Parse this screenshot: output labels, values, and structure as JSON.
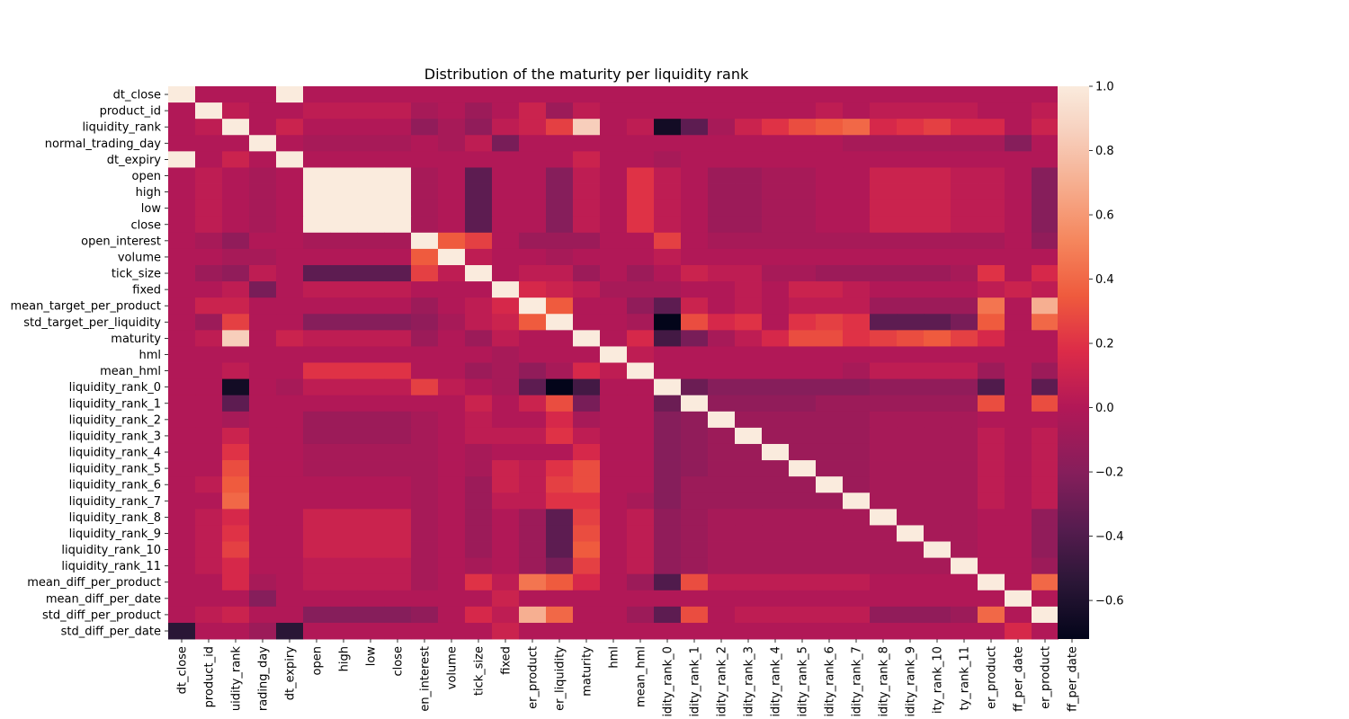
{
  "chart_data": {
    "type": "heatmap",
    "title": "Distribution of the maturity per liquidity rank",
    "rows": [
      "dt_close",
      "product_id",
      "liquidity_rank",
      "normal_trading_day",
      "dt_expiry",
      "open",
      "high",
      "low",
      "close",
      "open_interest",
      "volume",
      "tick_size",
      "fixed",
      "mean_target_per_product",
      "std_target_per_liquidity",
      "maturity",
      "hml",
      "mean_hml",
      "liquidity_rank_0",
      "liquidity_rank_1",
      "liquidity_rank_2",
      "liquidity_rank_3",
      "liquidity_rank_4",
      "liquidity_rank_5",
      "liquidity_rank_6",
      "liquidity_rank_7",
      "liquidity_rank_8",
      "liquidity_rank_9",
      "liquidity_rank_10",
      "liquidity_rank_11",
      "mean_diff_per_product",
      "mean_diff_per_date",
      "std_diff_per_product",
      "std_diff_per_date"
    ],
    "columns": [
      "dt_close",
      "product_id",
      "liquidity_rank",
      "normal_trading_day",
      "dt_expiry",
      "open",
      "high",
      "low",
      "close",
      "open_interest",
      "volume",
      "tick_size",
      "fixed",
      "mean_target_per_product",
      "std_target_per_liquidity",
      "maturity",
      "hml",
      "mean_hml",
      "liquidity_rank_0",
      "liquidity_rank_1",
      "liquidity_rank_2",
      "liquidity_rank_3",
      "liquidity_rank_4",
      "liquidity_rank_5",
      "liquidity_rank_6",
      "liquidity_rank_7",
      "liquidity_rank_8",
      "liquidity_rank_9",
      "liquidity_rank_10",
      "liquidity_rank_11",
      "mean_diff_per_product",
      "mean_diff_per_date",
      "std_diff_per_product",
      "std_diff_per_date"
    ],
    "x_tick_labels_visible": [
      "dt_close",
      "product_id",
      "uidity_rank",
      "rading_day",
      "dt_expiry",
      "open",
      "high",
      "low",
      "close",
      "en_interest",
      "volume",
      "tick_size",
      "fixed",
      "er_product",
      "er_liquidity",
      "maturity",
      "hml",
      "mean_hml",
      "idity_rank_0",
      "idity_rank_1",
      "idity_rank_2",
      "idity_rank_3",
      "idity_rank_4",
      "idity_rank_5",
      "idity_rank_6",
      "idity_rank_7",
      "idity_rank_8",
      "idity_rank_9",
      "ity_rank_10",
      "ty_rank_11",
      "er_product",
      "ff_per_date",
      "er_product",
      "ff_per_date"
    ],
    "y_tick_labels_visible": [
      "dt_close",
      "product_id",
      "liquidity_rank",
      "normal_trading_day",
      "dt_expiry",
      "open",
      "high",
      "low",
      "close",
      "open_interest",
      "volume",
      "tick_size",
      "fixed",
      "mean_target_per_product",
      "std_target_per_liquidity",
      "maturity",
      "hml",
      "mean_hml",
      "liquidity_rank_0",
      "liquidity_rank_1",
      "liquidity_rank_2",
      "liquidity_rank_3",
      "liquidity_rank_4",
      "liquidity_rank_5",
      "liquidity_rank_6",
      "liquidity_rank_7",
      "liquidity_rank_8",
      "liquidity_rank_9",
      "liquidity_rank_10",
      "liquidity_rank_11",
      "mean_diff_per_product",
      "mean_diff_per_date",
      "std_diff_per_product",
      "std_diff_per_date"
    ],
    "colorbar": {
      "vmin": -0.72,
      "vmax": 1.0,
      "ticks": [
        1.0,
        0.8,
        0.6,
        0.4,
        0.2,
        0.0,
        -0.2,
        -0.4,
        -0.6
      ],
      "tick_labels": [
        "1.0",
        "0.8",
        "0.6",
        "0.4",
        "0.2",
        "0.0",
        "−0.2",
        "−0.4",
        "−0.6"
      ]
    },
    "colormap": "rocket",
    "values": [
      [
        1.0,
        0.0,
        0.0,
        0.0,
        1.0,
        0.0,
        0.0,
        0.0,
        0.0,
        0.0,
        0.0,
        0.0,
        0.0,
        0.0,
        0.0,
        0.0,
        0.0,
        0.0,
        0.0,
        0.0,
        0.0,
        0.0,
        0.0,
        0.0,
        0.0,
        0.0,
        0.0,
        0.0,
        0.0,
        0.0,
        0.0,
        0.0,
        0.0,
        -0.55
      ],
      [
        0.0,
        1.0,
        0.05,
        0.0,
        0.0,
        0.05,
        0.05,
        0.05,
        0.05,
        -0.05,
        0.0,
        -0.1,
        0.0,
        0.1,
        -0.1,
        0.05,
        0.0,
        0.0,
        0.0,
        0.0,
        0.0,
        0.0,
        0.0,
        0.0,
        0.05,
        0.0,
        0.05,
        0.05,
        0.05,
        0.05,
        0.0,
        0.0,
        0.05,
        0.0
      ],
      [
        0.0,
        0.05,
        1.0,
        0.0,
        0.1,
        0.0,
        0.0,
        0.0,
        0.0,
        -0.15,
        -0.05,
        -0.15,
        0.05,
        0.1,
        0.25,
        0.85,
        0.0,
        0.05,
        -0.65,
        -0.35,
        -0.05,
        0.1,
        0.2,
        0.3,
        0.35,
        0.4,
        0.15,
        0.2,
        0.25,
        0.15,
        0.15,
        0.0,
        0.1,
        0.0
      ],
      [
        0.0,
        0.0,
        0.0,
        1.0,
        0.0,
        -0.05,
        -0.05,
        -0.05,
        -0.05,
        0.0,
        -0.05,
        0.05,
        -0.25,
        0.0,
        0.0,
        0.0,
        0.0,
        0.0,
        0.0,
        0.0,
        0.0,
        0.0,
        0.0,
        0.0,
        0.0,
        -0.05,
        -0.05,
        -0.05,
        -0.05,
        -0.05,
        -0.05,
        -0.2,
        0.0,
        -0.1
      ],
      [
        1.0,
        0.0,
        0.1,
        0.0,
        1.0,
        0.0,
        0.0,
        0.0,
        0.0,
        0.0,
        0.0,
        0.0,
        0.0,
        0.0,
        0.0,
        0.1,
        0.0,
        0.0,
        -0.05,
        0.0,
        0.0,
        0.0,
        0.0,
        0.0,
        0.0,
        0.0,
        0.0,
        0.0,
        0.0,
        0.0,
        0.0,
        0.0,
        0.0,
        -0.55
      ],
      [
        0.0,
        0.05,
        0.0,
        -0.05,
        0.0,
        1.0,
        1.0,
        1.0,
        1.0,
        -0.05,
        0.0,
        -0.35,
        0.0,
        0.0,
        -0.2,
        0.05,
        0.0,
        0.2,
        0.05,
        0.0,
        -0.1,
        -0.1,
        -0.05,
        -0.05,
        0.0,
        0.0,
        0.1,
        0.1,
        0.1,
        0.05,
        0.05,
        0.0,
        -0.2,
        0.0
      ],
      [
        0.0,
        0.05,
        0.0,
        -0.05,
        0.0,
        1.0,
        1.0,
        1.0,
        1.0,
        -0.05,
        0.0,
        -0.35,
        0.0,
        0.0,
        -0.2,
        0.05,
        0.0,
        0.2,
        0.05,
        0.0,
        -0.1,
        -0.1,
        -0.05,
        -0.05,
        0.0,
        0.0,
        0.1,
        0.1,
        0.1,
        0.05,
        0.05,
        0.0,
        -0.2,
        0.0
      ],
      [
        0.0,
        0.05,
        0.0,
        -0.05,
        0.0,
        1.0,
        1.0,
        1.0,
        1.0,
        -0.05,
        0.0,
        -0.35,
        0.0,
        0.0,
        -0.2,
        0.05,
        0.0,
        0.2,
        0.05,
        0.0,
        -0.1,
        -0.1,
        -0.05,
        -0.05,
        0.0,
        0.0,
        0.1,
        0.1,
        0.1,
        0.05,
        0.05,
        0.0,
        -0.2,
        0.0
      ],
      [
        0.0,
        0.05,
        0.0,
        -0.05,
        0.0,
        1.0,
        1.0,
        1.0,
        1.0,
        -0.05,
        0.0,
        -0.35,
        0.0,
        0.0,
        -0.2,
        0.05,
        0.0,
        0.2,
        0.05,
        0.0,
        -0.1,
        -0.1,
        -0.05,
        -0.05,
        0.0,
        0.0,
        0.1,
        0.1,
        0.1,
        0.05,
        0.05,
        0.0,
        -0.2,
        0.0
      ],
      [
        0.0,
        -0.05,
        -0.15,
        0.0,
        0.0,
        -0.05,
        -0.05,
        -0.05,
        -0.05,
        1.0,
        0.35,
        0.25,
        0.0,
        -0.1,
        -0.1,
        -0.1,
        0.0,
        0.0,
        0.25,
        0.0,
        -0.05,
        -0.05,
        -0.05,
        -0.05,
        -0.05,
        -0.05,
        -0.05,
        -0.05,
        -0.05,
        -0.05,
        -0.05,
        0.0,
        -0.15,
        0.0
      ],
      [
        0.0,
        0.0,
        -0.05,
        -0.05,
        0.0,
        0.0,
        0.0,
        0.0,
        0.0,
        0.35,
        1.0,
        0.05,
        0.0,
        0.0,
        -0.05,
        0.0,
        0.0,
        0.0,
        0.05,
        0.0,
        0.0,
        0.0,
        0.0,
        0.0,
        0.0,
        0.0,
        0.0,
        0.0,
        0.0,
        0.0,
        0.0,
        0.0,
        0.0,
        0.0
      ],
      [
        0.0,
        -0.1,
        -0.15,
        0.05,
        0.0,
        -0.35,
        -0.35,
        -0.35,
        -0.35,
        0.25,
        0.05,
        1.0,
        0.0,
        0.05,
        0.05,
        -0.1,
        0.0,
        -0.1,
        0.0,
        0.1,
        0.05,
        0.05,
        -0.05,
        -0.05,
        -0.1,
        -0.1,
        -0.1,
        -0.1,
        -0.1,
        -0.05,
        0.2,
        0.0,
        0.15,
        0.0
      ],
      [
        0.0,
        0.0,
        0.05,
        -0.25,
        0.0,
        0.05,
        0.05,
        0.05,
        0.05,
        0.0,
        0.0,
        0.0,
        1.0,
        0.15,
        0.1,
        0.05,
        -0.05,
        -0.05,
        -0.05,
        0.0,
        0.0,
        0.05,
        0.0,
        0.1,
        0.1,
        0.05,
        0.0,
        0.0,
        0.0,
        0.0,
        0.05,
        0.1,
        0.05,
        0.1
      ],
      [
        0.0,
        0.1,
        0.1,
        0.0,
        0.0,
        0.0,
        0.0,
        0.0,
        0.0,
        -0.1,
        0.0,
        0.05,
        0.15,
        1.0,
        0.35,
        0.0,
        0.0,
        -0.15,
        -0.35,
        0.1,
        0.0,
        0.05,
        0.0,
        0.05,
        0.05,
        0.05,
        -0.1,
        -0.1,
        -0.1,
        -0.1,
        0.45,
        0.0,
        0.7,
        0.0
      ],
      [
        0.0,
        -0.1,
        0.25,
        0.0,
        0.0,
        -0.2,
        -0.2,
        -0.2,
        -0.2,
        -0.15,
        -0.05,
        0.05,
        0.1,
        0.35,
        1.0,
        0.0,
        0.0,
        -0.05,
        -0.72,
        0.3,
        0.15,
        0.2,
        0.0,
        0.2,
        0.25,
        0.2,
        -0.35,
        -0.35,
        -0.35,
        -0.25,
        0.35,
        0.0,
        0.4,
        0.0
      ],
      [
        0.0,
        0.05,
        0.85,
        0.0,
        0.1,
        0.05,
        0.05,
        0.05,
        0.05,
        -0.1,
        0.0,
        -0.1,
        0.05,
        0.0,
        0.0,
        1.0,
        0.0,
        0.15,
        -0.45,
        -0.25,
        -0.05,
        0.05,
        0.15,
        0.3,
        0.3,
        0.2,
        0.25,
        0.3,
        0.35,
        0.25,
        0.15,
        0.0,
        0.0,
        0.0
      ],
      [
        0.0,
        0.0,
        0.0,
        0.0,
        0.0,
        0.0,
        0.0,
        0.0,
        0.0,
        0.0,
        0.0,
        0.0,
        -0.05,
        0.0,
        0.0,
        0.0,
        1.0,
        0.05,
        0.0,
        0.0,
        0.0,
        0.0,
        0.0,
        0.0,
        0.0,
        0.0,
        0.0,
        0.0,
        0.0,
        0.0,
        0.0,
        0.0,
        0.0,
        0.0
      ],
      [
        0.0,
        0.0,
        0.05,
        0.0,
        0.0,
        0.2,
        0.2,
        0.2,
        0.2,
        0.0,
        0.0,
        -0.1,
        -0.05,
        -0.15,
        -0.05,
        0.15,
        0.05,
        1.0,
        0.0,
        0.0,
        0.0,
        0.0,
        0.0,
        0.0,
        0.0,
        -0.05,
        0.05,
        0.05,
        0.05,
        0.05,
        -0.1,
        0.0,
        -0.1,
        0.0
      ],
      [
        0.0,
        0.0,
        -0.65,
        0.0,
        -0.05,
        0.05,
        0.05,
        0.05,
        0.05,
        0.25,
        0.05,
        0.0,
        -0.05,
        -0.35,
        -0.72,
        -0.45,
        0.0,
        0.0,
        1.0,
        -0.3,
        -0.2,
        -0.2,
        -0.2,
        -0.2,
        -0.2,
        -0.2,
        -0.15,
        -0.15,
        -0.15,
        -0.15,
        -0.4,
        0.0,
        -0.35,
        0.0
      ],
      [
        0.0,
        0.0,
        -0.35,
        0.0,
        0.0,
        0.0,
        0.0,
        0.0,
        0.0,
        0.0,
        0.0,
        0.1,
        0.0,
        0.1,
        0.3,
        -0.25,
        0.0,
        0.0,
        -0.3,
        1.0,
        -0.15,
        -0.15,
        -0.15,
        -0.15,
        -0.1,
        -0.1,
        -0.1,
        -0.1,
        -0.1,
        -0.1,
        0.3,
        0.0,
        0.3,
        0.0
      ],
      [
        0.0,
        0.0,
        -0.05,
        0.0,
        0.0,
        -0.1,
        -0.1,
        -0.1,
        -0.1,
        -0.05,
        0.0,
        0.05,
        0.0,
        0.0,
        0.15,
        -0.05,
        0.0,
        0.0,
        -0.2,
        -0.15,
        1.0,
        -0.1,
        -0.1,
        -0.1,
        -0.1,
        -0.1,
        -0.05,
        -0.05,
        -0.05,
        -0.05,
        0.0,
        0.0,
        0.0,
        0.0
      ],
      [
        0.0,
        0.0,
        0.1,
        0.0,
        0.0,
        -0.1,
        -0.1,
        -0.1,
        -0.1,
        -0.05,
        0.0,
        0.05,
        0.05,
        0.05,
        0.2,
        0.05,
        0.0,
        0.0,
        -0.2,
        -0.15,
        -0.1,
        1.0,
        -0.1,
        -0.1,
        -0.1,
        -0.1,
        -0.05,
        -0.05,
        -0.05,
        -0.05,
        0.05,
        0.0,
        0.05,
        0.0
      ],
      [
        0.0,
        0.0,
        0.2,
        0.0,
        0.0,
        -0.05,
        -0.05,
        -0.05,
        -0.05,
        -0.05,
        0.0,
        -0.05,
        0.0,
        0.0,
        0.0,
        0.15,
        0.0,
        0.0,
        -0.2,
        -0.15,
        -0.1,
        -0.1,
        1.0,
        -0.1,
        -0.1,
        -0.1,
        -0.05,
        -0.05,
        -0.05,
        -0.05,
        0.05,
        0.0,
        0.05,
        0.0
      ],
      [
        0.0,
        0.0,
        0.3,
        0.0,
        0.0,
        -0.05,
        -0.05,
        -0.05,
        -0.05,
        -0.05,
        0.0,
        -0.05,
        0.1,
        0.05,
        0.2,
        0.3,
        0.0,
        0.0,
        -0.2,
        -0.15,
        -0.1,
        -0.1,
        -0.1,
        1.0,
        -0.1,
        -0.1,
        -0.05,
        -0.05,
        -0.05,
        -0.05,
        0.05,
        0.0,
        0.05,
        0.0
      ],
      [
        0.0,
        0.05,
        0.35,
        0.0,
        0.0,
        0.0,
        0.0,
        0.0,
        0.0,
        -0.05,
        0.0,
        -0.1,
        0.1,
        0.05,
        0.25,
        0.3,
        0.0,
        0.0,
        -0.2,
        -0.1,
        -0.1,
        -0.1,
        -0.1,
        -0.1,
        1.0,
        -0.1,
        -0.05,
        -0.05,
        -0.05,
        -0.05,
        0.05,
        0.0,
        0.05,
        0.0
      ],
      [
        0.0,
        0.0,
        0.4,
        0.0,
        0.0,
        0.0,
        0.0,
        0.0,
        0.0,
        -0.05,
        0.0,
        -0.1,
        0.05,
        0.05,
        0.2,
        0.2,
        0.0,
        -0.05,
        -0.2,
        -0.1,
        -0.1,
        -0.1,
        -0.1,
        -0.1,
        -0.1,
        1.0,
        -0.05,
        -0.05,
        -0.05,
        -0.05,
        0.05,
        0.0,
        0.05,
        0.0
      ],
      [
        0.0,
        0.05,
        0.15,
        0.0,
        0.0,
        0.1,
        0.1,
        0.1,
        0.1,
        -0.05,
        0.0,
        -0.1,
        0.0,
        -0.1,
        -0.35,
        0.25,
        0.0,
        0.05,
        -0.15,
        -0.1,
        -0.05,
        -0.05,
        -0.05,
        -0.05,
        -0.05,
        -0.05,
        1.0,
        -0.05,
        -0.05,
        -0.05,
        0.0,
        0.0,
        -0.15,
        0.0
      ],
      [
        0.0,
        0.05,
        0.2,
        0.0,
        0.0,
        0.1,
        0.1,
        0.1,
        0.1,
        -0.05,
        0.0,
        -0.1,
        0.0,
        -0.1,
        -0.35,
        0.3,
        0.0,
        0.05,
        -0.15,
        -0.1,
        -0.05,
        -0.05,
        -0.05,
        -0.05,
        -0.05,
        -0.05,
        -0.05,
        1.0,
        -0.05,
        -0.05,
        0.0,
        0.0,
        -0.15,
        0.0
      ],
      [
        0.0,
        0.05,
        0.25,
        0.0,
        0.0,
        0.1,
        0.1,
        0.1,
        0.1,
        -0.05,
        0.0,
        -0.1,
        0.0,
        -0.1,
        -0.35,
        0.35,
        0.0,
        0.05,
        -0.15,
        -0.1,
        -0.05,
        -0.05,
        -0.05,
        -0.05,
        -0.05,
        -0.05,
        -0.05,
        -0.05,
        1.0,
        -0.05,
        0.0,
        0.0,
        -0.15,
        0.0
      ],
      [
        0.0,
        0.05,
        0.15,
        0.0,
        0.0,
        0.05,
        0.05,
        0.05,
        0.05,
        -0.05,
        0.0,
        -0.05,
        0.0,
        -0.1,
        -0.25,
        0.25,
        0.0,
        0.05,
        -0.15,
        -0.1,
        -0.05,
        -0.05,
        -0.05,
        -0.05,
        -0.05,
        -0.05,
        -0.05,
        -0.05,
        -0.05,
        1.0,
        0.0,
        0.0,
        -0.1,
        0.0
      ],
      [
        0.0,
        0.0,
        0.15,
        -0.05,
        0.0,
        0.05,
        0.05,
        0.05,
        0.05,
        -0.05,
        0.0,
        0.2,
        0.05,
        0.45,
        0.35,
        0.15,
        0.0,
        -0.1,
        -0.4,
        0.3,
        0.05,
        0.05,
        0.05,
        0.05,
        0.05,
        0.05,
        0.0,
        0.0,
        0.0,
        0.0,
        1.0,
        0.0,
        0.4,
        0.0
      ],
      [
        0.0,
        0.0,
        0.0,
        -0.2,
        0.0,
        0.0,
        0.0,
        0.0,
        0.0,
        0.0,
        0.0,
        0.0,
        0.1,
        0.0,
        0.0,
        0.0,
        0.0,
        0.0,
        0.0,
        0.0,
        0.0,
        0.0,
        0.0,
        0.0,
        0.0,
        0.0,
        0.0,
        0.0,
        0.0,
        0.0,
        0.0,
        1.0,
        0.0,
        0.15
      ],
      [
        0.0,
        0.05,
        0.1,
        0.0,
        0.0,
        -0.2,
        -0.2,
        -0.2,
        -0.2,
        -0.15,
        0.0,
        0.15,
        0.05,
        0.7,
        0.4,
        0.0,
        0.0,
        -0.1,
        -0.35,
        0.3,
        0.0,
        0.05,
        0.05,
        0.05,
        0.05,
        0.05,
        -0.15,
        -0.15,
        -0.15,
        -0.1,
        0.4,
        0.0,
        1.0,
        0.0
      ],
      [
        -0.55,
        0.0,
        0.0,
        -0.1,
        -0.55,
        0.0,
        0.0,
        0.0,
        0.0,
        0.0,
        0.0,
        0.0,
        0.1,
        0.0,
        0.0,
        0.0,
        0.0,
        0.0,
        0.0,
        0.0,
        0.0,
        0.0,
        0.0,
        0.0,
        0.0,
        0.0,
        0.0,
        0.0,
        0.0,
        0.0,
        0.0,
        0.15,
        0.0,
        1.0
      ]
    ]
  }
}
